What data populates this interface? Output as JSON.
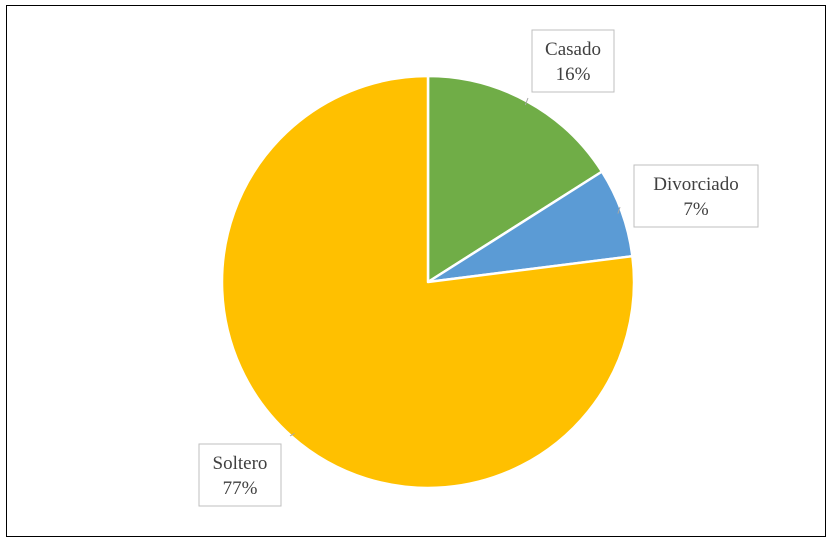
{
  "chart_data": {
    "type": "pie",
    "title": "",
    "slices": [
      {
        "label": "Casado",
        "value": 16,
        "display": "16%",
        "color": "#70AD47"
      },
      {
        "label": "Divorciado",
        "value": 7,
        "display": "7%",
        "color": "#5B9BD5"
      },
      {
        "label": "Soltero",
        "value": 77,
        "display": "77%",
        "color": "#FFC000"
      }
    ],
    "start_angle_deg": 0,
    "direction": "clockwise",
    "legend": "none",
    "data_labels": "outside-callout"
  }
}
